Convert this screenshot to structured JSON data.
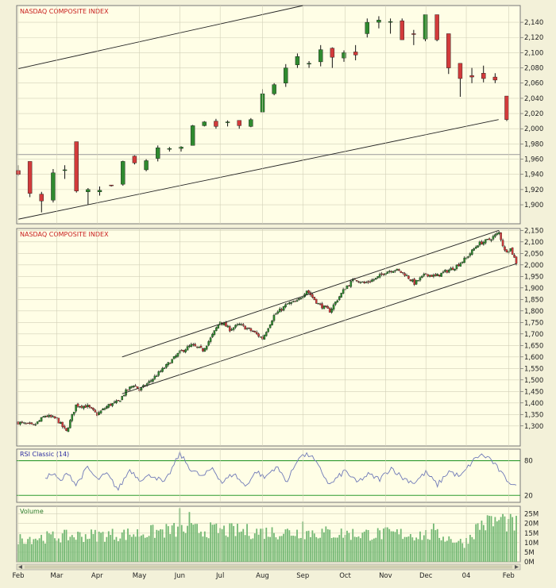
{
  "colors": {
    "background": "#f3f1d9",
    "plot_bg": "#fffee6",
    "grid": "#d2d0b8",
    "frame": "#777777",
    "up_candle": "#2f8a2f",
    "down_candle": "#d23b3b",
    "label_red": "#c81e1e",
    "label_blue": "#2a2aa0",
    "rsi_line": "#6f79b8",
    "rsi_guides": "#2f9a2f",
    "volume_bar": "#74b874",
    "channel_line": "#222222"
  },
  "chart_data": [
    {
      "type": "candlestick",
      "title": "NASDAQ COMPOSITE INDEX",
      "panel": "upper-zoom",
      "ylim": [
        1875,
        2162
      ],
      "y_ticks": [
        1900,
        1920,
        1940,
        1960,
        1980,
        2000,
        2020,
        2040,
        2060,
        2080,
        2100,
        2120,
        2140
      ],
      "y_tick_labels": [
        "1,900",
        "1,920",
        "1,940",
        "1,960",
        "1,980",
        "2,000",
        "2,020",
        "2,040",
        "2,060",
        "2,080",
        "2,100",
        "2,120",
        "2,140"
      ],
      "horizontal_line": 1966,
      "candles": [
        {
          "o": 1945,
          "h": 1952,
          "l": 1938,
          "c": 1940
        },
        {
          "o": 1957,
          "h": 1957,
          "l": 1910,
          "c": 1915
        },
        {
          "o": 1914,
          "h": 1917,
          "l": 1890,
          "c": 1905
        },
        {
          "o": 1906,
          "h": 1947,
          "l": 1903,
          "c": 1942
        },
        {
          "o": 1945,
          "h": 1952,
          "l": 1934,
          "c": 1946
        },
        {
          "o": 1983,
          "h": 1983,
          "l": 1916,
          "c": 1918
        },
        {
          "o": 1917,
          "h": 1922,
          "l": 1900,
          "c": 1920
        },
        {
          "o": 1917,
          "h": 1924,
          "l": 1912,
          "c": 1919
        },
        {
          "o": 1926,
          "h": 1926,
          "l": 1924,
          "c": 1925
        },
        {
          "o": 1927,
          "h": 1958,
          "l": 1925,
          "c": 1957
        },
        {
          "o": 1964,
          "h": 1965,
          "l": 1953,
          "c": 1955
        },
        {
          "o": 1946,
          "h": 1960,
          "l": 1944,
          "c": 1958
        },
        {
          "o": 1961,
          "h": 1978,
          "l": 1957,
          "c": 1975
        },
        {
          "o": 1974,
          "h": 1976,
          "l": 1970,
          "c": 1974
        },
        {
          "o": 1974,
          "h": 1977,
          "l": 1970,
          "c": 1976
        },
        {
          "o": 1978,
          "h": 2005,
          "l": 1978,
          "c": 2004
        },
        {
          "o": 2004,
          "h": 2010,
          "l": 2003,
          "c": 2009
        },
        {
          "o": 2010,
          "h": 2013,
          "l": 2000,
          "c": 2003
        },
        {
          "o": 2008,
          "h": 2011,
          "l": 2003,
          "c": 2009
        },
        {
          "o": 2011,
          "h": 2011,
          "l": 2000,
          "c": 2004
        },
        {
          "o": 2003,
          "h": 2014,
          "l": 2002,
          "c": 2012
        },
        {
          "o": 2022,
          "h": 2052,
          "l": 2022,
          "c": 2046
        },
        {
          "o": 2046,
          "h": 2060,
          "l": 2044,
          "c": 2058
        },
        {
          "o": 2060,
          "h": 2085,
          "l": 2055,
          "c": 2080
        },
        {
          "o": 2084,
          "h": 2099,
          "l": 2080,
          "c": 2095
        },
        {
          "o": 2085,
          "h": 2089,
          "l": 2080,
          "c": 2086
        },
        {
          "o": 2088,
          "h": 2110,
          "l": 2082,
          "c": 2104
        },
        {
          "o": 2106,
          "h": 2107,
          "l": 2080,
          "c": 2094
        },
        {
          "o": 2093,
          "h": 2103,
          "l": 2088,
          "c": 2100
        },
        {
          "o": 2101,
          "h": 2110,
          "l": 2090,
          "c": 2097
        },
        {
          "o": 2125,
          "h": 2145,
          "l": 2120,
          "c": 2140
        },
        {
          "o": 2140,
          "h": 2148,
          "l": 2132,
          "c": 2143
        },
        {
          "o": 2140,
          "h": 2145,
          "l": 2125,
          "c": 2141
        },
        {
          "o": 2142,
          "h": 2145,
          "l": 2117,
          "c": 2117
        },
        {
          "o": 2125,
          "h": 2130,
          "l": 2110,
          "c": 2124
        },
        {
          "o": 2118,
          "h": 2150,
          "l": 2115,
          "c": 2150
        },
        {
          "o": 2150,
          "h": 2150,
          "l": 2115,
          "c": 2117
        },
        {
          "o": 2125,
          "h": 2125,
          "l": 2072,
          "c": 2080
        },
        {
          "o": 2086,
          "h": 2086,
          "l": 2042,
          "c": 2066
        },
        {
          "o": 2070,
          "h": 2080,
          "l": 2060,
          "c": 2068
        },
        {
          "o": 2073,
          "h": 2083,
          "l": 2061,
          "c": 2066
        },
        {
          "o": 2068,
          "h": 2073,
          "l": 2060,
          "c": 2064
        },
        {
          "o": 2043,
          "h": 2043,
          "l": 2010,
          "c": 2012
        }
      ],
      "trend_lines": [
        {
          "from": [
            0,
            1881
          ],
          "to": [
            41.3,
            2012
          ]
        },
        {
          "from": [
            0,
            2079
          ],
          "to": [
            24.5,
            2162
          ]
        }
      ]
    },
    {
      "type": "candlestick",
      "title": "NASDAQ COMPOSITE INDEX",
      "panel": "price",
      "ylim": [
        1213,
        2158
      ],
      "y_ticks": [
        1300,
        1350,
        1400,
        1450,
        1500,
        1550,
        1600,
        1650,
        1700,
        1750,
        1800,
        1850,
        1900,
        1950,
        2000,
        2050,
        2100,
        2150
      ],
      "y_tick_labels": [
        "1,300",
        "1,350",
        "1,400",
        "1,450",
        "1,500",
        "1,550",
        "1,600",
        "1,650",
        "1,700",
        "1,750",
        "1,800",
        "1,850",
        "1,900",
        "1,950",
        "2,000",
        "2,050",
        "2,100",
        "2,150"
      ],
      "x_tick_labels": [
        "Feb",
        "Mar",
        "Apr",
        "May",
        "Jun",
        "Jul",
        "Aug",
        "Sep",
        "Oct",
        "Nov",
        "Dec",
        "04",
        "Feb"
      ],
      "x_tick_positions": [
        0,
        20,
        41,
        63,
        84,
        105,
        127,
        148,
        170,
        191,
        212,
        233,
        255
      ],
      "x_count": 260,
      "anchor_closes": [
        [
          0,
          1315
        ],
        [
          8,
          1300
        ],
        [
          14,
          1345
        ],
        [
          20,
          1330
        ],
        [
          25,
          1275
        ],
        [
          30,
          1390
        ],
        [
          36,
          1385
        ],
        [
          41,
          1350
        ],
        [
          47,
          1390
        ],
        [
          52,
          1405
        ],
        [
          56,
          1450
        ],
        [
          60,
          1480
        ],
        [
          63,
          1455
        ],
        [
          68,
          1490
        ],
        [
          75,
          1545
        ],
        [
          84,
          1620
        ],
        [
          90,
          1650
        ],
        [
          96,
          1630
        ],
        [
          100,
          1680
        ],
        [
          105,
          1755
        ],
        [
          110,
          1720
        ],
        [
          115,
          1740
        ],
        [
          122,
          1710
        ],
        [
          127,
          1680
        ],
        [
          133,
          1780
        ],
        [
          140,
          1830
        ],
        [
          145,
          1840
        ],
        [
          150,
          1890
        ],
        [
          156,
          1830
        ],
        [
          162,
          1800
        ],
        [
          170,
          1900
        ],
        [
          175,
          1940
        ],
        [
          180,
          1920
        ],
        [
          186,
          1940
        ],
        [
          191,
          1970
        ],
        [
          196,
          1980
        ],
        [
          201,
          1960
        ],
        [
          206,
          1920
        ],
        [
          212,
          1960
        ],
        [
          217,
          1950
        ],
        [
          222,
          1970
        ],
        [
          227,
          1990
        ],
        [
          233,
          2030
        ],
        [
          239,
          2090
        ],
        [
          245,
          2110
        ],
        [
          250,
          2140
        ],
        [
          253,
          2060
        ],
        [
          256,
          2070
        ],
        [
          259,
          2010
        ]
      ],
      "trend_lines": [
        {
          "from": [
            54,
            1440
          ],
          "to": [
            259,
            2005
          ]
        },
        {
          "from": [
            54,
            1600
          ],
          "to": [
            250,
            2150
          ]
        }
      ]
    },
    {
      "type": "line",
      "title": "RSI Classic (14)",
      "panel": "rsi",
      "ylim": [
        8,
        100
      ],
      "y_ticks": [
        20,
        80
      ],
      "y_tick_labels": [
        "20",
        "80"
      ],
      "guides": [
        20,
        80
      ],
      "anchor_values": [
        [
          14,
          52
        ],
        [
          18,
          57
        ],
        [
          22,
          44
        ],
        [
          26,
          60
        ],
        [
          30,
          38
        ],
        [
          36,
          68
        ],
        [
          41,
          47
        ],
        [
          46,
          57
        ],
        [
          52,
          30
        ],
        [
          58,
          65
        ],
        [
          63,
          48
        ],
        [
          70,
          55
        ],
        [
          76,
          41
        ],
        [
          84,
          92
        ],
        [
          90,
          64
        ],
        [
          96,
          52
        ],
        [
          101,
          68
        ],
        [
          106,
          42
        ],
        [
          112,
          58
        ],
        [
          118,
          36
        ],
        [
          124,
          62
        ],
        [
          128,
          50
        ],
        [
          134,
          70
        ],
        [
          140,
          44
        ],
        [
          146,
          88
        ],
        [
          152,
          90
        ],
        [
          156,
          70
        ],
        [
          162,
          38
        ],
        [
          170,
          63
        ],
        [
          176,
          42
        ],
        [
          182,
          56
        ],
        [
          188,
          48
        ],
        [
          194,
          68
        ],
        [
          200,
          50
        ],
        [
          206,
          42
        ],
        [
          212,
          60
        ],
        [
          218,
          38
        ],
        [
          224,
          62
        ],
        [
          230,
          52
        ],
        [
          236,
          78
        ],
        [
          240,
          90
        ],
        [
          245,
          85
        ],
        [
          250,
          64
        ],
        [
          253,
          50
        ],
        [
          257,
          40
        ],
        [
          259,
          34
        ]
      ]
    },
    {
      "type": "bar",
      "title": "Volume",
      "panel": "volume",
      "ylim": [
        0,
        29
      ],
      "y_ticks": [
        0,
        5,
        10,
        15,
        20,
        25
      ],
      "y_tick_labels": [
        "0M",
        "5M",
        "10M",
        "15M",
        "20M",
        "25M"
      ],
      "values_millions_base": [
        [
          0,
          12.5
        ],
        [
          30,
          14
        ],
        [
          60,
          15
        ],
        [
          80,
          17
        ],
        [
          100,
          17
        ],
        [
          130,
          16
        ],
        [
          150,
          16
        ],
        [
          175,
          15
        ],
        [
          200,
          15
        ],
        [
          220,
          14
        ],
        [
          232,
          10
        ],
        [
          240,
          20
        ],
        [
          250,
          22
        ],
        [
          259,
          20
        ]
      ],
      "spikes_millions": [
        [
          84,
          28
        ],
        [
          89,
          26
        ],
        [
          148,
          21
        ],
        [
          216,
          20
        ],
        [
          245,
          24
        ],
        [
          252,
          25
        ]
      ]
    }
  ]
}
